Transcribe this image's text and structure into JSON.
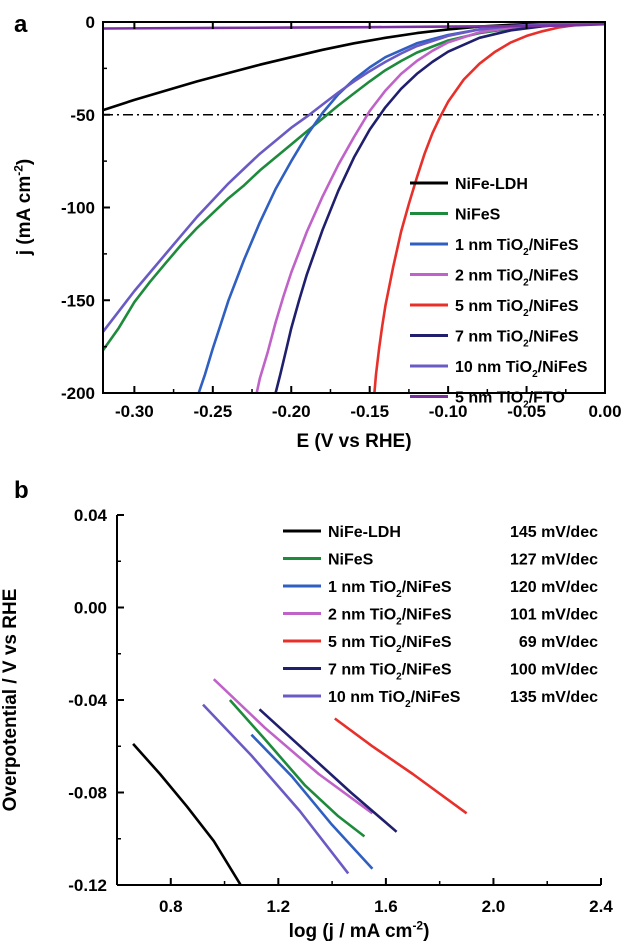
{
  "chart_data": [
    {
      "panel_label": "a",
      "type": "line",
      "xlabel": "E (V vs RHE)",
      "ylabel_parts": [
        "j (mA cm",
        "-2",
        ")"
      ],
      "xlim": [
        -0.32,
        0.0
      ],
      "ylim": [
        -200,
        0
      ],
      "x_ticks": [
        -0.3,
        -0.25,
        -0.2,
        -0.15,
        -0.1,
        -0.05,
        0.0
      ],
      "x_tick_labels": [
        "-0.30",
        "-0.25",
        "-0.20",
        "-0.15",
        "-0.10",
        "-0.05",
        "0.00"
      ],
      "y_ticks": [
        0,
        -50,
        -100,
        -150,
        -200
      ],
      "y_tick_labels": [
        "0",
        "-50",
        "-100",
        "-150",
        "-200"
      ],
      "reference_line_y": -50,
      "legend_position": "lower-right",
      "series": [
        {
          "name": "NiFe-LDH",
          "label_parts": [
            "NiFe-LDH"
          ],
          "color": "#000000",
          "points": [
            [
              -0.32,
              -47.5
            ],
            [
              -0.3,
              -42
            ],
            [
              -0.28,
              -37
            ],
            [
              -0.26,
              -32
            ],
            [
              -0.24,
              -27.5
            ],
            [
              -0.22,
              -23
            ],
            [
              -0.2,
              -19
            ],
            [
              -0.18,
              -15
            ],
            [
              -0.16,
              -11.5
            ],
            [
              -0.14,
              -8.5
            ],
            [
              -0.12,
              -6
            ],
            [
              -0.1,
              -4
            ],
            [
              -0.08,
              -2.5
            ],
            [
              -0.06,
              -1.5
            ],
            [
              -0.04,
              -0.8
            ],
            [
              -0.02,
              -0.3
            ],
            [
              0.0,
              0
            ]
          ]
        },
        {
          "name": "NiFeS",
          "label_parts": [
            "NiFeS"
          ],
          "color": "#1e8a3c",
          "points": [
            [
              -0.32,
              -177
            ],
            [
              -0.31,
              -165
            ],
            [
              -0.3,
              -151
            ],
            [
              -0.29,
              -140
            ],
            [
              -0.28,
              -130
            ],
            [
              -0.27,
              -120
            ],
            [
              -0.26,
              -111
            ],
            [
              -0.25,
              -103
            ],
            [
              -0.24,
              -95
            ],
            [
              -0.23,
              -88
            ],
            [
              -0.22,
              -80
            ],
            [
              -0.21,
              -73
            ],
            [
              -0.2,
              -66
            ],
            [
              -0.19,
              -59
            ],
            [
              -0.18,
              -52
            ],
            [
              -0.17,
              -45
            ],
            [
              -0.16,
              -38.5
            ],
            [
              -0.15,
              -32
            ],
            [
              -0.14,
              -26
            ],
            [
              -0.13,
              -21
            ],
            [
              -0.12,
              -16.5
            ],
            [
              -0.1,
              -10
            ],
            [
              -0.08,
              -6
            ],
            [
              -0.06,
              -3.5
            ],
            [
              -0.04,
              -2
            ],
            [
              -0.02,
              -1
            ],
            [
              0.0,
              -0.5
            ]
          ]
        },
        {
          "name": "1 nm TiO2/NiFeS",
          "label_parts": [
            "1 nm TiO",
            "2",
            "/NiFeS"
          ],
          "color": "#2f5fc0",
          "points": [
            [
              -0.259,
              -200
            ],
            [
              -0.255,
              -190
            ],
            [
              -0.25,
              -176
            ],
            [
              -0.245,
              -163
            ],
            [
              -0.24,
              -150
            ],
            [
              -0.23,
              -128
            ],
            [
              -0.22,
              -108
            ],
            [
              -0.21,
              -90
            ],
            [
              -0.2,
              -75
            ],
            [
              -0.19,
              -61
            ],
            [
              -0.18,
              -49
            ],
            [
              -0.17,
              -39
            ],
            [
              -0.16,
              -31
            ],
            [
              -0.15,
              -24.5
            ],
            [
              -0.14,
              -19
            ],
            [
              -0.12,
              -11.5
            ],
            [
              -0.1,
              -7
            ],
            [
              -0.08,
              -4
            ],
            [
              -0.06,
              -2.5
            ],
            [
              -0.04,
              -1.5
            ],
            [
              -0.02,
              -0.8
            ],
            [
              0.0,
              -0.4
            ]
          ]
        },
        {
          "name": "2 nm TiO2/NiFeS",
          "label_parts": [
            "2 nm TiO",
            "2",
            "/NiFeS"
          ],
          "color": "#c063c8",
          "points": [
            [
              -0.222,
              -200
            ],
            [
              -0.22,
              -192
            ],
            [
              -0.215,
              -178
            ],
            [
              -0.21,
              -162
            ],
            [
              -0.205,
              -148
            ],
            [
              -0.2,
              -135
            ],
            [
              -0.19,
              -113
            ],
            [
              -0.18,
              -94
            ],
            [
              -0.17,
              -77
            ],
            [
              -0.16,
              -62
            ],
            [
              -0.15,
              -48
            ],
            [
              -0.14,
              -37
            ],
            [
              -0.13,
              -28
            ],
            [
              -0.12,
              -21
            ],
            [
              -0.11,
              -15.5
            ],
            [
              -0.1,
              -11
            ],
            [
              -0.08,
              -5.5
            ],
            [
              -0.06,
              -3
            ],
            [
              -0.04,
              -1.5
            ],
            [
              -0.02,
              -0.7
            ],
            [
              0.0,
              -0.3
            ]
          ]
        },
        {
          "name": "5 nm TiO2/NiFeS",
          "label_parts": [
            "5 nm TiO",
            "2",
            "/NiFeS"
          ],
          "color": "#e8302a",
          "points": [
            [
              -0.147,
              -200
            ],
            [
              -0.146,
              -190
            ],
            [
              -0.144,
              -176
            ],
            [
              -0.142,
              -164
            ],
            [
              -0.14,
              -153
            ],
            [
              -0.135,
              -132
            ],
            [
              -0.13,
              -113
            ],
            [
              -0.125,
              -98
            ],
            [
              -0.12,
              -84
            ],
            [
              -0.115,
              -71
            ],
            [
              -0.11,
              -60
            ],
            [
              -0.105,
              -51
            ],
            [
              -0.1,
              -43
            ],
            [
              -0.09,
              -31
            ],
            [
              -0.08,
              -22.5
            ],
            [
              -0.07,
              -16
            ],
            [
              -0.06,
              -11
            ],
            [
              -0.05,
              -7.5
            ],
            [
              -0.04,
              -5
            ],
            [
              -0.03,
              -3
            ],
            [
              -0.02,
              -1.8
            ],
            [
              -0.01,
              -1
            ],
            [
              0.0,
              -0.5
            ]
          ]
        },
        {
          "name": "7 nm TiO2/NiFeS",
          "label_parts": [
            "7 nm TiO",
            "2",
            "/NiFeS"
          ],
          "color": "#1f1f6e",
          "points": [
            [
              -0.21,
              -200
            ],
            [
              -0.207,
              -190
            ],
            [
              -0.203,
              -176
            ],
            [
              -0.2,
              -165
            ],
            [
              -0.195,
              -150
            ],
            [
              -0.19,
              -136
            ],
            [
              -0.18,
              -112
            ],
            [
              -0.17,
              -91
            ],
            [
              -0.16,
              -73
            ],
            [
              -0.15,
              -58
            ],
            [
              -0.14,
              -46
            ],
            [
              -0.13,
              -36
            ],
            [
              -0.12,
              -28
            ],
            [
              -0.11,
              -21.5
            ],
            [
              -0.1,
              -16
            ],
            [
              -0.08,
              -8.5
            ],
            [
              -0.06,
              -4.5
            ],
            [
              -0.04,
              -2.3
            ],
            [
              -0.02,
              -1
            ],
            [
              0.0,
              -0.4
            ]
          ]
        },
        {
          "name": "10 nm TiO2/NiFeS",
          "label_parts": [
            "10 nm TiO",
            "2",
            "/NiFeS"
          ],
          "color": "#6a5bc4",
          "points": [
            [
              -0.32,
              -167
            ],
            [
              -0.31,
              -156
            ],
            [
              -0.3,
              -145
            ],
            [
              -0.29,
              -135
            ],
            [
              -0.28,
              -125
            ],
            [
              -0.27,
              -115
            ],
            [
              -0.26,
              -105
            ],
            [
              -0.25,
              -96
            ],
            [
              -0.24,
              -87
            ],
            [
              -0.23,
              -79
            ],
            [
              -0.22,
              -71
            ],
            [
              -0.21,
              -64
            ],
            [
              -0.2,
              -57
            ],
            [
              -0.19,
              -51
            ],
            [
              -0.18,
              -44.5
            ],
            [
              -0.17,
              -38
            ],
            [
              -0.16,
              -32
            ],
            [
              -0.15,
              -26.5
            ],
            [
              -0.14,
              -21.5
            ],
            [
              -0.13,
              -17
            ],
            [
              -0.12,
              -13
            ],
            [
              -0.1,
              -7.5
            ],
            [
              -0.08,
              -4
            ],
            [
              -0.06,
              -2.2
            ],
            [
              -0.04,
              -1.2
            ],
            [
              -0.02,
              -0.6
            ],
            [
              0.0,
              -0.3
            ]
          ]
        },
        {
          "name": "5 nm TiO2/FTO",
          "label_parts": [
            "5 nm TiO",
            "2",
            "/FTO"
          ],
          "color": "#7a2fa0",
          "points": [
            [
              -0.32,
              -3.5
            ],
            [
              -0.25,
              -3.2
            ],
            [
              -0.2,
              -3.0
            ],
            [
              -0.15,
              -2.8
            ],
            [
              -0.1,
              -2.5
            ],
            [
              -0.05,
              -2.2
            ],
            [
              -0.02,
              -1.8
            ],
            [
              0.0,
              -1.2
            ]
          ]
        }
      ]
    },
    {
      "panel_label": "b",
      "type": "line",
      "xlabel_parts": [
        "log (j / mA cm",
        "-2",
        ")"
      ],
      "ylabel": "Overpotential / V vs RHE",
      "xlim": [
        0.6,
        2.4
      ],
      "ylim": [
        -0.12,
        0.04
      ],
      "x_ticks": [
        0.8,
        1.2,
        1.6,
        2.0,
        2.4
      ],
      "x_tick_labels": [
        "0.8",
        "1.2",
        "1.6",
        "2.0",
        "2.4"
      ],
      "y_ticks": [
        0.04,
        0.0,
        -0.04,
        -0.08,
        -0.12
      ],
      "y_tick_labels": [
        "0.04",
        "0.00",
        "-0.04",
        "-0.08",
        "-0.12"
      ],
      "legend_position": "top-right",
      "series": [
        {
          "name": "NiFe-LDH",
          "label_parts": [
            "NiFe-LDH"
          ],
          "slope": "145 mV/dec",
          "color": "#000000",
          "points": [
            [
              0.66,
              -0.059
            ],
            [
              0.76,
              -0.072
            ],
            [
              0.86,
              -0.086
            ],
            [
              0.96,
              -0.101
            ],
            [
              1.06,
              -0.12
            ]
          ]
        },
        {
          "name": "NiFeS",
          "label_parts": [
            "NiFeS"
          ],
          "slope": "127 mV/dec",
          "color": "#1e8a3c",
          "points": [
            [
              1.02,
              -0.04
            ],
            [
              1.15,
              -0.057
            ],
            [
              1.3,
              -0.077
            ],
            [
              1.42,
              -0.09
            ],
            [
              1.52,
              -0.099
            ]
          ]
        },
        {
          "name": "1 nm TiO2/NiFeS",
          "label_parts": [
            "1 nm TiO",
            "2",
            "/NiFeS"
          ],
          "slope": "120 mV/dec",
          "color": "#2f5fc0",
          "points": [
            [
              1.1,
              -0.055
            ],
            [
              1.25,
              -0.073
            ],
            [
              1.4,
              -0.094
            ],
            [
              1.55,
              -0.113
            ]
          ]
        },
        {
          "name": "2 nm TiO2/NiFeS",
          "label_parts": [
            "2 nm TiO",
            "2",
            "/NiFeS"
          ],
          "slope": "101 mV/dec",
          "color": "#c063c8",
          "points": [
            [
              0.96,
              -0.031
            ],
            [
              1.15,
              -0.052
            ],
            [
              1.35,
              -0.072
            ],
            [
              1.55,
              -0.089
            ]
          ]
        },
        {
          "name": "5 nm TiO2/NiFeS",
          "label_parts": [
            "5 nm TiO",
            "2",
            "/NiFeS"
          ],
          "slope": "69 mV/dec",
          "color": "#e8302a",
          "points": [
            [
              1.41,
              -0.048
            ],
            [
              1.55,
              -0.06
            ],
            [
              1.7,
              -0.072
            ],
            [
              1.9,
              -0.089
            ]
          ]
        },
        {
          "name": "7 nm TiO2/NiFeS",
          "label_parts": [
            "7 nm TiO",
            "2",
            "/NiFeS"
          ],
          "slope": "100 mV/dec",
          "color": "#1f1f6e",
          "points": [
            [
              1.13,
              -0.044
            ],
            [
              1.3,
              -0.062
            ],
            [
              1.47,
              -0.08
            ],
            [
              1.64,
              -0.097
            ]
          ]
        },
        {
          "name": "10 nm TiO2/NiFeS",
          "label_parts": [
            "10 nm TiO",
            "2",
            "/NiFeS"
          ],
          "slope": "135 mV/dec",
          "color": "#6a5bc4",
          "points": [
            [
              0.92,
              -0.042
            ],
            [
              1.1,
              -0.064
            ],
            [
              1.28,
              -0.088
            ],
            [
              1.46,
              -0.115
            ]
          ]
        }
      ]
    }
  ]
}
